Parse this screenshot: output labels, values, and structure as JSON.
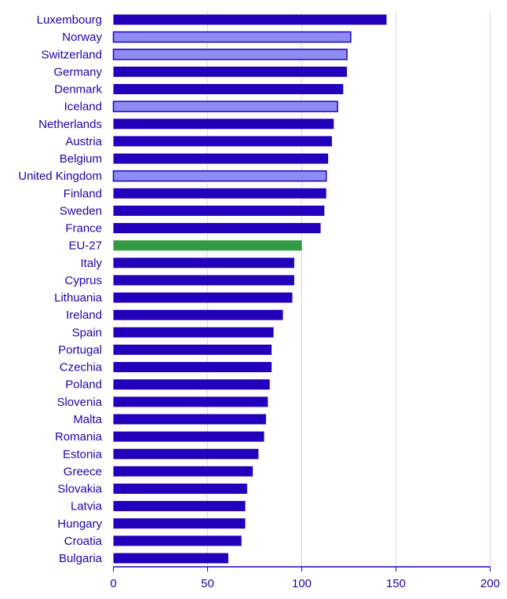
{
  "chart_data": {
    "type": "bar",
    "orientation": "horizontal",
    "categories": [
      "Luxembourg",
      "Norway",
      "Switzerland",
      "Germany",
      "Denmark",
      "Iceland",
      "Netherlands",
      "Austria",
      "Belgium",
      "United Kingdom",
      "Finland",
      "Sweden",
      "France",
      "EU-27",
      "Italy",
      "Cyprus",
      "Lithuania",
      "Ireland",
      "Spain",
      "Portugal",
      "Czechia",
      "Poland",
      "Slovenia",
      "Malta",
      "Romania",
      "Estonia",
      "Greece",
      "Slovakia",
      "Latvia",
      "Hungary",
      "Croatia",
      "Bulgaria"
    ],
    "values": [
      145,
      126,
      124,
      124,
      122,
      119,
      117,
      116,
      114,
      113,
      113,
      112,
      110,
      100,
      96,
      96,
      95,
      90,
      85,
      84,
      84,
      83,
      82,
      81,
      80,
      77,
      74,
      71,
      70,
      70,
      68,
      61
    ],
    "groups": [
      "eu",
      "non-eu",
      "non-eu",
      "eu",
      "eu",
      "non-eu",
      "eu",
      "eu",
      "eu",
      "non-eu",
      "eu",
      "eu",
      "eu",
      "average",
      "eu",
      "eu",
      "eu",
      "eu",
      "eu",
      "eu",
      "eu",
      "eu",
      "eu",
      "eu",
      "eu",
      "eu",
      "eu",
      "eu",
      "eu",
      "eu",
      "eu",
      "eu"
    ],
    "colors": {
      "eu": "#2200bb",
      "non-eu": "#8c8cf2",
      "average": "#339944",
      "border": "#2200bb",
      "grid": "#d4d4f4",
      "text": "#2200aa"
    },
    "xlim": [
      0,
      200
    ],
    "xticks": [
      "0",
      "50",
      "100",
      "150",
      "200"
    ],
    "grid": true,
    "title": "",
    "xlabel": "",
    "ylabel": ""
  }
}
